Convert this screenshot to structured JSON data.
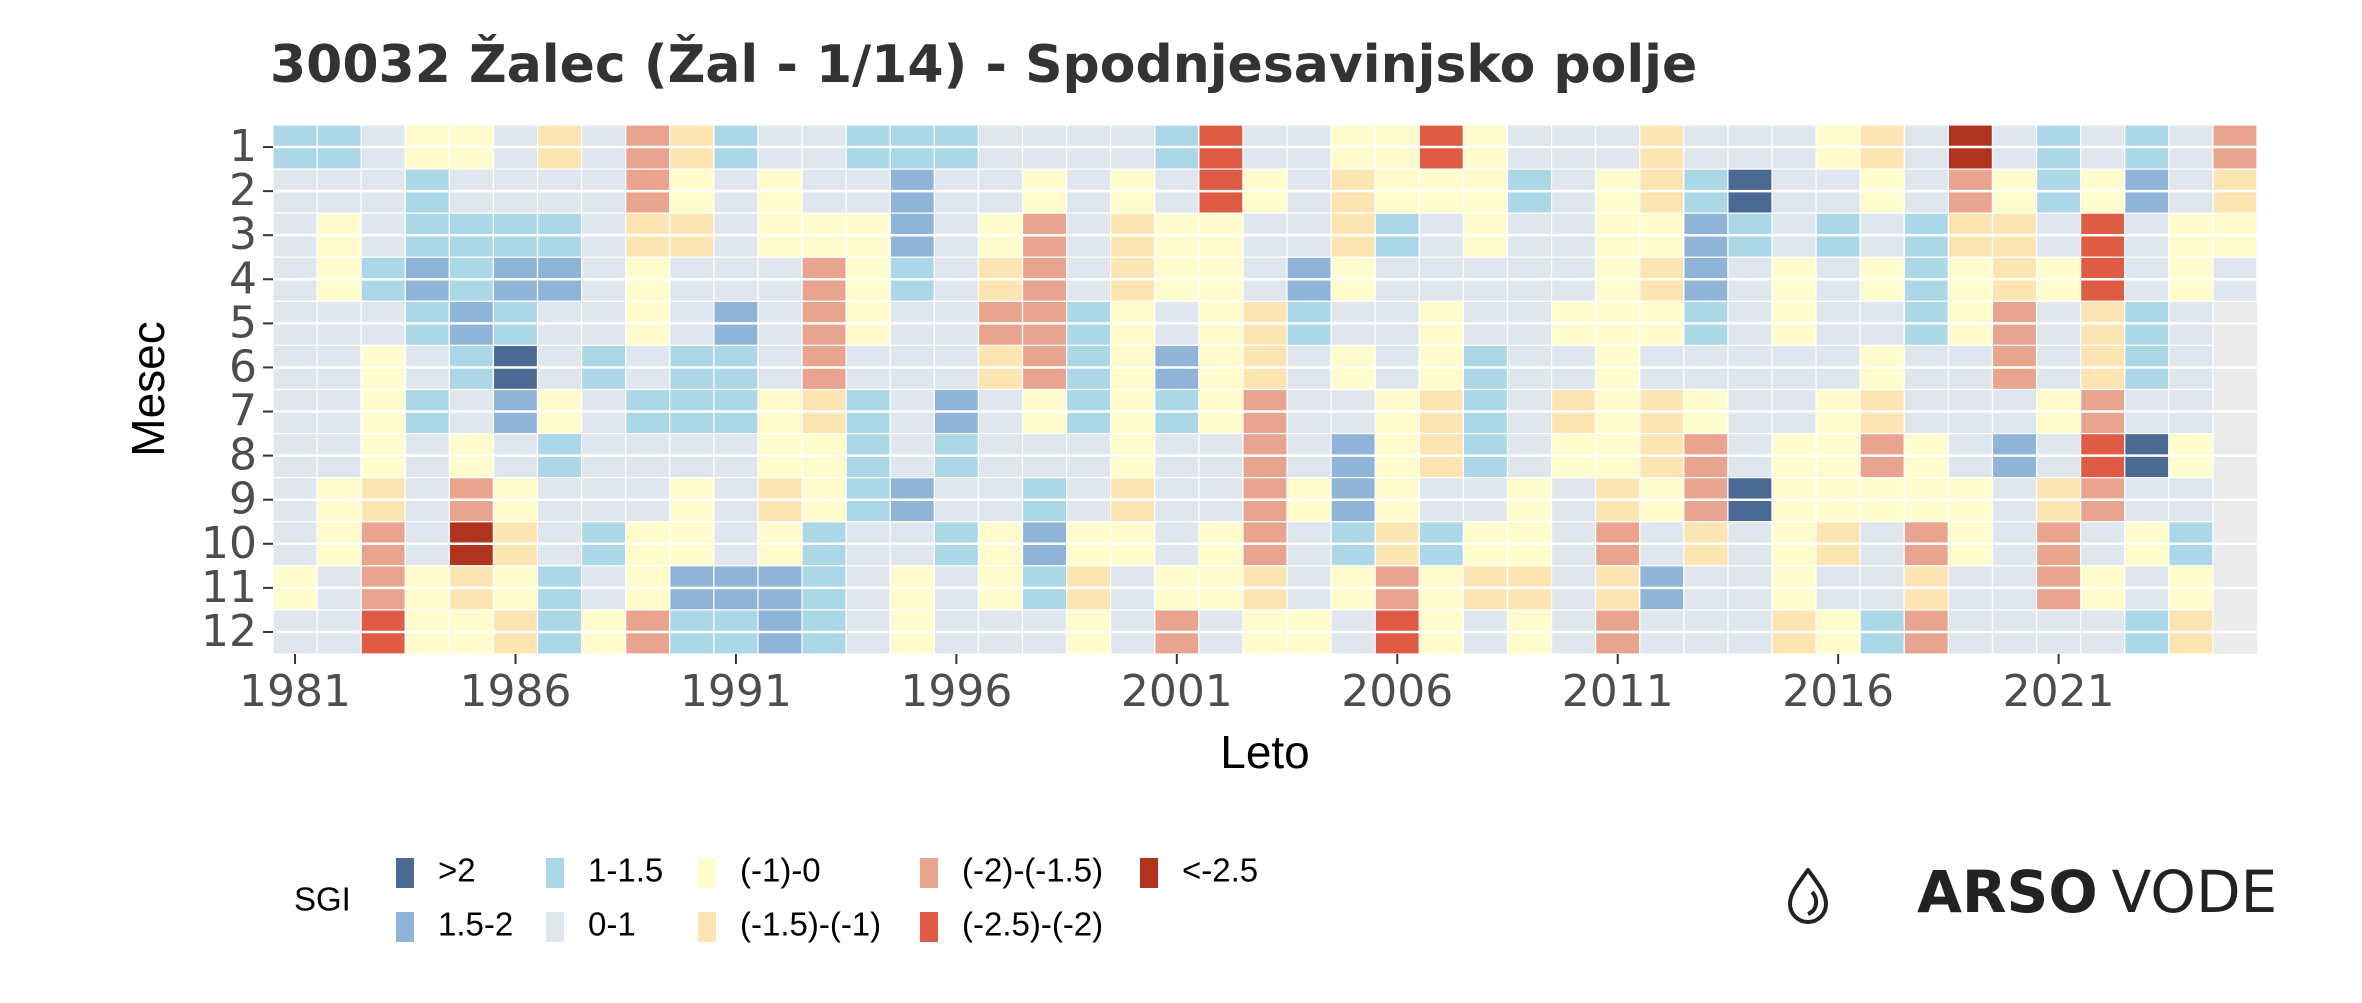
{
  "chart_data": {
    "type": "heatmap",
    "title": "30032 Žalec (Žal - 1/14) - Spodnjesavinjsko polje",
    "x_label": "Leto",
    "y_label": "Mesec",
    "x": [
      1981,
      1982,
      1983,
      1984,
      1985,
      1986,
      1987,
      1988,
      1989,
      1990,
      1991,
      1992,
      1993,
      1994,
      1995,
      1996,
      1997,
      1998,
      1999,
      2000,
      2001,
      2002,
      2003,
      2004,
      2005,
      2006,
      2007,
      2008,
      2009,
      2010,
      2011,
      2012,
      2013,
      2014,
      2015,
      2016,
      2017,
      2018,
      2019,
      2020,
      2021,
      2022,
      2023,
      2024,
      2025
    ],
    "y": [
      1,
      2,
      3,
      4,
      5,
      6,
      7,
      8,
      9,
      10,
      11,
      12
    ],
    "xlim": [
      1980.5,
      2025.5
    ],
    "ylim": [
      0.5,
      12.5
    ],
    "xticks": [
      1981,
      1986,
      1991,
      1996,
      2001,
      2006,
      2011,
      2016,
      2021
    ],
    "yticks": [
      1,
      2,
      3,
      4,
      5,
      6,
      7,
      8,
      9,
      10,
      11,
      12
    ],
    "grid": true,
    "z": [
      [
        1.25,
        1.25,
        0.5,
        -0.5,
        -0.5,
        0.5,
        -1.25,
        0.5,
        -1.75,
        -1.25,
        1.25,
        0.5,
        0.5,
        1.25,
        1.25,
        1.25,
        0.5,
        0.5,
        0.5,
        0.5,
        1.25,
        -2.25,
        0.5,
        0.5,
        -0.5,
        -0.5,
        -2.25,
        -0.5,
        0.5,
        0.5,
        0.5,
        -1.25,
        0.5,
        0.5,
        0.5,
        -0.5,
        -1.25,
        0.5,
        -2.75,
        0.5,
        1.25,
        0.5,
        1.25,
        0.5,
        -1.75
      ],
      [
        0.5,
        0.5,
        0.5,
        1.25,
        0.5,
        0.5,
        0.5,
        0.5,
        -1.75,
        -0.5,
        0.5,
        -0.5,
        0.5,
        0.5,
        1.75,
        0.5,
        0.5,
        -0.5,
        0.5,
        -0.5,
        0.5,
        -2.25,
        -0.5,
        0.5,
        -1.25,
        -0.5,
        -0.5,
        -0.5,
        1.25,
        0.5,
        -0.5,
        -1.25,
        1.25,
        2.25,
        0.5,
        0.5,
        -0.5,
        0.5,
        -1.75,
        -0.5,
        1.25,
        -0.5,
        1.75,
        0.5,
        -1.25
      ],
      [
        0.5,
        -0.5,
        0.5,
        1.25,
        1.25,
        1.25,
        1.25,
        0.5,
        -1.25,
        -1.25,
        0.5,
        -0.5,
        -0.5,
        -0.5,
        1.75,
        0.5,
        -0.5,
        -1.75,
        0.5,
        -1.25,
        -0.5,
        -0.5,
        0.5,
        0.5,
        -1.25,
        1.25,
        0.5,
        -0.5,
        0.5,
        0.5,
        -0.5,
        -0.5,
        1.75,
        1.25,
        0.5,
        1.25,
        0.5,
        1.25,
        -1.25,
        -1.25,
        0.5,
        -2.25,
        0.5,
        -0.5,
        -0.5
      ],
      [
        0.5,
        -0.5,
        1.25,
        1.75,
        1.25,
        1.75,
        1.75,
        0.5,
        -0.5,
        0.5,
        0.5,
        0.5,
        -1.75,
        -0.5,
        1.25,
        0.5,
        -1.25,
        -1.75,
        0.5,
        -1.25,
        -0.5,
        -0.5,
        0.5,
        1.75,
        -0.5,
        0.5,
        0.5,
        0.5,
        0.5,
        0.5,
        -0.5,
        -1.25,
        1.75,
        0.5,
        -0.5,
        0.5,
        -0.5,
        1.25,
        -0.5,
        -1.25,
        -0.5,
        -2.25,
        0.5,
        -0.5,
        0.5
      ],
      [
        0.5,
        0.5,
        0.5,
        1.25,
        1.75,
        1.25,
        0.5,
        0.5,
        -0.5,
        0.5,
        1.75,
        0.5,
        -1.75,
        -0.5,
        0.5,
        0.5,
        -1.75,
        -1.75,
        1.25,
        -0.5,
        0.5,
        -0.5,
        -1.25,
        1.25,
        0.5,
        0.5,
        -0.5,
        0.5,
        0.5,
        -0.5,
        -0.5,
        -0.5,
        1.25,
        0.5,
        -0.5,
        0.5,
        0.5,
        1.25,
        -0.5,
        -1.75,
        0.5,
        -1.25,
        1.25,
        0.5,
        null
      ],
      [
        0.5,
        0.5,
        -0.5,
        0.5,
        1.25,
        2.25,
        0.5,
        1.25,
        0.5,
        1.25,
        1.25,
        0.5,
        -1.75,
        0.5,
        0.5,
        0.5,
        -1.25,
        -1.75,
        1.25,
        -0.5,
        1.75,
        -0.5,
        -1.25,
        0.5,
        -0.5,
        0.5,
        -0.5,
        1.25,
        0.5,
        0.5,
        -0.5,
        0.5,
        0.5,
        0.5,
        0.5,
        0.5,
        -0.5,
        0.5,
        0.5,
        -1.75,
        0.5,
        -1.25,
        1.25,
        0.5,
        null
      ],
      [
        0.5,
        0.5,
        -0.5,
        1.25,
        0.5,
        1.75,
        -0.5,
        0.5,
        1.25,
        1.25,
        1.25,
        -0.5,
        -1.25,
        1.25,
        0.5,
        1.75,
        0.5,
        -0.5,
        1.25,
        -0.5,
        1.25,
        -0.5,
        -1.75,
        0.5,
        0.5,
        -0.5,
        -1.25,
        1.25,
        0.5,
        -1.25,
        -0.5,
        -1.25,
        -0.5,
        0.5,
        0.5,
        -0.5,
        -1.25,
        0.5,
        0.5,
        0.5,
        -0.5,
        -1.75,
        0.5,
        0.5,
        null
      ],
      [
        0.5,
        0.5,
        -0.5,
        0.5,
        -0.5,
        0.5,
        1.25,
        0.5,
        0.5,
        0.5,
        0.5,
        -0.5,
        -0.5,
        1.25,
        0.5,
        1.25,
        0.5,
        0.5,
        0.5,
        -0.5,
        0.5,
        0.5,
        -1.75,
        0.5,
        1.75,
        -0.5,
        -1.25,
        1.25,
        0.5,
        -0.5,
        -0.5,
        -1.25,
        -1.75,
        0.5,
        -0.5,
        -0.5,
        -1.75,
        -0.5,
        0.5,
        1.75,
        0.5,
        -2.25,
        2.25,
        -0.5,
        null
      ],
      [
        0.5,
        -0.5,
        -1.25,
        0.5,
        -1.75,
        -0.5,
        0.5,
        0.5,
        0.5,
        -0.5,
        0.5,
        -1.25,
        -0.5,
        1.25,
        1.75,
        0.5,
        0.5,
        1.25,
        0.5,
        -1.25,
        0.5,
        0.5,
        -1.75,
        -0.5,
        1.75,
        -0.5,
        0.5,
        0.5,
        -0.5,
        0.5,
        -1.25,
        -0.5,
        -1.75,
        2.25,
        -0.5,
        -0.5,
        -0.5,
        -0.5,
        -0.5,
        0.5,
        -1.25,
        -1.75,
        0.5,
        0.5,
        null
      ],
      [
        0.5,
        -0.5,
        -1.75,
        0.5,
        -2.75,
        -1.25,
        0.5,
        1.25,
        -0.5,
        -0.5,
        0.5,
        -0.5,
        1.25,
        0.5,
        0.5,
        1.25,
        -0.5,
        1.75,
        -0.5,
        -0.5,
        0.5,
        -0.5,
        -1.75,
        0.5,
        1.25,
        -1.25,
        1.25,
        -0.5,
        -0.5,
        0.5,
        -1.75,
        0.5,
        -1.25,
        0.5,
        -0.5,
        -1.25,
        0.5,
        -1.75,
        -0.5,
        0.5,
        -1.75,
        0.5,
        -0.5,
        1.25,
        null
      ],
      [
        -0.5,
        0.5,
        -1.75,
        -0.5,
        -1.25,
        -0.5,
        1.25,
        0.5,
        -0.5,
        1.75,
        1.75,
        1.75,
        1.25,
        0.5,
        -0.5,
        0.5,
        -0.5,
        1.25,
        -1.25,
        0.5,
        -0.5,
        -0.5,
        -1.25,
        0.5,
        -0.5,
        -1.75,
        -0.5,
        -1.25,
        -1.25,
        0.5,
        -1.25,
        1.75,
        0.5,
        0.5,
        -0.5,
        0.5,
        0.5,
        -1.25,
        0.5,
        0.5,
        -1.75,
        -0.5,
        0.5,
        -0.5,
        null
      ],
      [
        0.5,
        0.5,
        -2.25,
        -0.5,
        -0.5,
        -1.25,
        1.25,
        -0.5,
        -1.75,
        1.25,
        1.25,
        1.75,
        1.25,
        0.5,
        -0.5,
        0.5,
        0.5,
        0.5,
        -0.5,
        0.5,
        -1.75,
        0.5,
        -0.5,
        -0.5,
        0.5,
        -2.25,
        -0.5,
        0.5,
        -0.5,
        0.5,
        -1.75,
        0.5,
        0.5,
        0.5,
        -1.25,
        -0.5,
        1.25,
        -1.75,
        0.5,
        0.5,
        0.5,
        0.5,
        1.25,
        -1.25,
        null
      ]
    ],
    "legend": {
      "title": "SGI",
      "items": [
        {
          "label": ">2",
          "range": [
            2,
            null
          ],
          "color": "#4a6a94"
        },
        {
          "label": "1.5-2",
          "range": [
            1.5,
            2
          ],
          "color": "#8fb4d7"
        },
        {
          "label": "1-1.5",
          "range": [
            1,
            1.5
          ],
          "color": "#abd7e6"
        },
        {
          "label": "0-1",
          "range": [
            0,
            1
          ],
          "color": "#e0e6ee"
        },
        {
          "label": "(-1)-0",
          "range": [
            -1,
            0
          ],
          "color": "#fefbcc"
        },
        {
          "label": "(-1.5)-(-1)",
          "range": [
            -1.5,
            -1
          ],
          "color": "#fde4b3"
        },
        {
          "label": "(-2)-(-1.5)",
          "range": [
            -2,
            -1.5
          ],
          "color": "#e9a48f"
        },
        {
          "label": "(-2.5)-(-2)",
          "range": [
            -2.5,
            -2
          ],
          "color": "#e05b44"
        },
        {
          "label": "<-2.5",
          "range": [
            null,
            -2.5
          ],
          "color": "#b0331f"
        }
      ]
    }
  },
  "logo": {
    "bold": "ARSO",
    "light": "VODE"
  }
}
